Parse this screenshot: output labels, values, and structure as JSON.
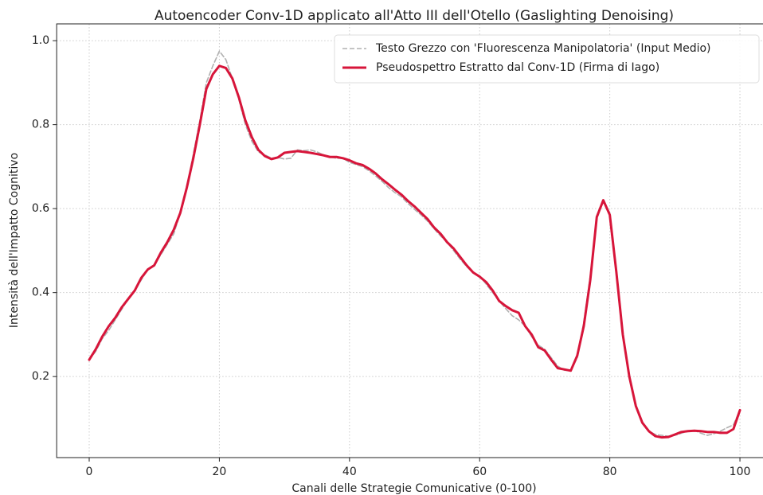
{
  "chart_data": {
    "type": "line",
    "title": "Autoencoder Conv-1D applicato all'Atto III dell'Otello (Gaslighting Denoising)",
    "x_label": "Canali delle Strategie Comunicative (0-100)",
    "y_label": "Intensità dell'Impatto Cognitivo",
    "x": [
      0,
      1,
      2,
      3,
      4,
      5,
      6,
      7,
      8,
      9,
      10,
      11,
      12,
      13,
      14,
      15,
      16,
      17,
      18,
      19,
      20,
      21,
      22,
      23,
      24,
      25,
      26,
      27,
      28,
      29,
      30,
      31,
      32,
      33,
      34,
      35,
      36,
      37,
      38,
      39,
      40,
      41,
      42,
      43,
      44,
      45,
      46,
      47,
      48,
      49,
      50,
      51,
      52,
      53,
      54,
      55,
      56,
      57,
      58,
      59,
      60,
      61,
      62,
      63,
      64,
      65,
      66,
      67,
      68,
      69,
      70,
      71,
      72,
      73,
      74,
      75,
      76,
      77,
      78,
      79,
      80,
      81,
      82,
      83,
      84,
      85,
      86,
      87,
      88,
      89,
      90,
      91,
      92,
      93,
      94,
      95,
      96,
      97,
      98,
      99,
      100
    ],
    "series": [
      {
        "name": "Testo Grezzo con 'Fluorescenza Manipolatoria' (Input Medio)",
        "color": "#b0b0b0",
        "dashed": true,
        "values": [
          0.24,
          0.26,
          0.29,
          0.31,
          0.335,
          0.36,
          0.385,
          0.405,
          0.43,
          0.455,
          0.465,
          0.49,
          0.515,
          0.54,
          0.59,
          0.65,
          0.73,
          0.81,
          0.9,
          0.94,
          0.975,
          0.955,
          0.91,
          0.86,
          0.8,
          0.76,
          0.735,
          0.728,
          0.72,
          0.722,
          0.718,
          0.72,
          0.74,
          0.738,
          0.74,
          0.735,
          0.728,
          0.723,
          0.72,
          0.72,
          0.71,
          0.705,
          0.7,
          0.69,
          0.678,
          0.665,
          0.65,
          0.638,
          0.628,
          0.612,
          0.598,
          0.585,
          0.57,
          0.552,
          0.535,
          0.52,
          0.5,
          0.48,
          0.462,
          0.448,
          0.44,
          0.42,
          0.4,
          0.38,
          0.362,
          0.345,
          0.335,
          0.32,
          0.295,
          0.275,
          0.265,
          0.245,
          0.225,
          0.215,
          0.214,
          0.245,
          0.33,
          0.44,
          0.575,
          0.62,
          0.59,
          0.45,
          0.3,
          0.2,
          0.13,
          0.09,
          0.07,
          0.062,
          0.06,
          0.058,
          0.06,
          0.065,
          0.07,
          0.072,
          0.065,
          0.06,
          0.064,
          0.07,
          0.078,
          0.085,
          0.12
        ]
      },
      {
        "name": "Pseudospettro Estratto dal Conv-1D (Firma di Iago)",
        "color": "#d7153a",
        "dashed": false,
        "values": [
          0.24,
          0.265,
          0.295,
          0.32,
          0.34,
          0.365,
          0.385,
          0.405,
          0.435,
          0.455,
          0.465,
          0.495,
          0.52,
          0.55,
          0.59,
          0.65,
          0.72,
          0.8,
          0.885,
          0.92,
          0.94,
          0.935,
          0.91,
          0.865,
          0.81,
          0.77,
          0.74,
          0.725,
          0.718,
          0.722,
          0.733,
          0.735,
          0.737,
          0.735,
          0.733,
          0.73,
          0.727,
          0.723,
          0.723,
          0.72,
          0.715,
          0.708,
          0.704,
          0.695,
          0.684,
          0.67,
          0.658,
          0.645,
          0.633,
          0.618,
          0.605,
          0.59,
          0.575,
          0.555,
          0.54,
          0.52,
          0.505,
          0.485,
          0.465,
          0.448,
          0.438,
          0.425,
          0.405,
          0.38,
          0.368,
          0.358,
          0.352,
          0.32,
          0.3,
          0.27,
          0.262,
          0.24,
          0.22,
          0.217,
          0.214,
          0.25,
          0.32,
          0.43,
          0.58,
          0.62,
          0.585,
          0.45,
          0.3,
          0.2,
          0.13,
          0.09,
          0.07,
          0.058,
          0.055,
          0.056,
          0.062,
          0.068,
          0.07,
          0.071,
          0.07,
          0.068,
          0.068,
          0.066,
          0.066,
          0.075,
          0.12
        ]
      }
    ],
    "xlim": [
      -5,
      105
    ],
    "ylim": [
      0.007,
      1.04
    ],
    "xticks": [
      0,
      20,
      40,
      60,
      80,
      100
    ],
    "yticks": [
      0.2,
      0.4,
      0.6,
      0.8,
      {
        "value": 1,
        "label": "1.0"
      }
    ],
    "grid": true,
    "legend": "upper right"
  }
}
